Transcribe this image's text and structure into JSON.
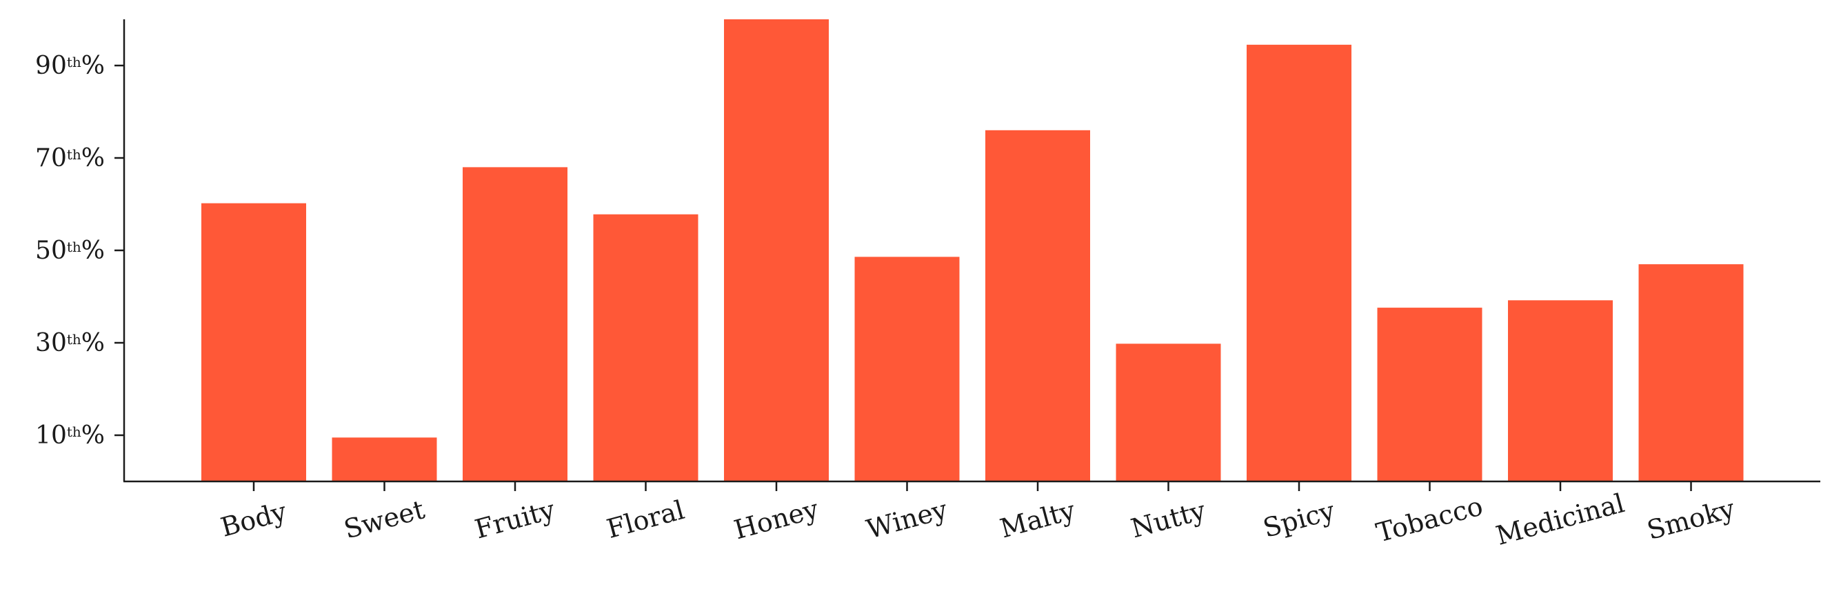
{
  "chart_data": {
    "type": "bar",
    "categories": [
      "Body",
      "Sweet",
      "Fruity",
      "Floral",
      "Honey",
      "Winey",
      "Malty",
      "Nutty",
      "Spicy",
      "Tobacco",
      "Medicinal",
      "Smoky"
    ],
    "values": [
      60.2,
      9.5,
      68.0,
      57.8,
      100,
      48.6,
      76.0,
      29.8,
      94.5,
      37.6,
      39.2,
      47.0
    ],
    "bar_color": "#ff5837",
    "ylim": [
      0,
      100
    ],
    "yticks": [
      {
        "value": 10,
        "number": "10",
        "sup": "th",
        "suffix": "%"
      },
      {
        "value": 30,
        "number": "30",
        "sup": "th",
        "suffix": "%"
      },
      {
        "value": 50,
        "number": "50",
        "sup": "th",
        "suffix": "%"
      },
      {
        "value": 70,
        "number": "70",
        "sup": "th",
        "suffix": "%"
      },
      {
        "value": 90,
        "number": "90",
        "sup": "th",
        "suffix": "%"
      }
    ],
    "xlabel_rotation_deg": -15,
    "grid": false,
    "spines": [
      "left",
      "bottom"
    ]
  }
}
